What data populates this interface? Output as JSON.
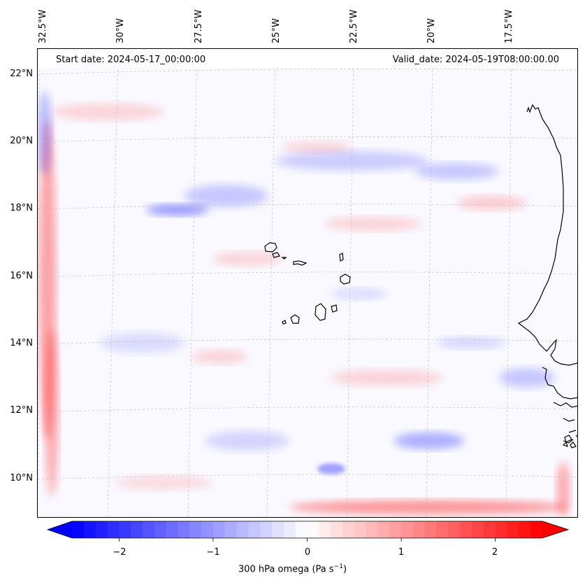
{
  "header": {
    "start_date": "Start date: 2024-05-17_00:00:00",
    "valid_date": "Valid_date: 2024-05-19T08:00:00.00"
  },
  "longitude_labels": [
    "32.5°W",
    "30°W",
    "27.5°W",
    "25°W",
    "22.5°W",
    "20°W",
    "17.5°W"
  ],
  "latitude_labels": [
    "22°N",
    "20°N",
    "18°N",
    "16°N",
    "14°N",
    "12°N",
    "10°N"
  ],
  "colorbar": {
    "ticks": [
      "−2",
      "−1",
      "0",
      "1",
      "2"
    ],
    "range": [
      -2.5,
      2.5
    ],
    "extend": "both",
    "cmap": "bwr",
    "label_main": "300 hPa omega (Pa s",
    "label_sup": "−1",
    "label_end": ")"
  },
  "colors": {
    "negative": "#0000ff",
    "neutral": "#ffffff",
    "positive": "#ff0000",
    "coastline": "#000000",
    "gridline": "#bbbbbb"
  }
}
